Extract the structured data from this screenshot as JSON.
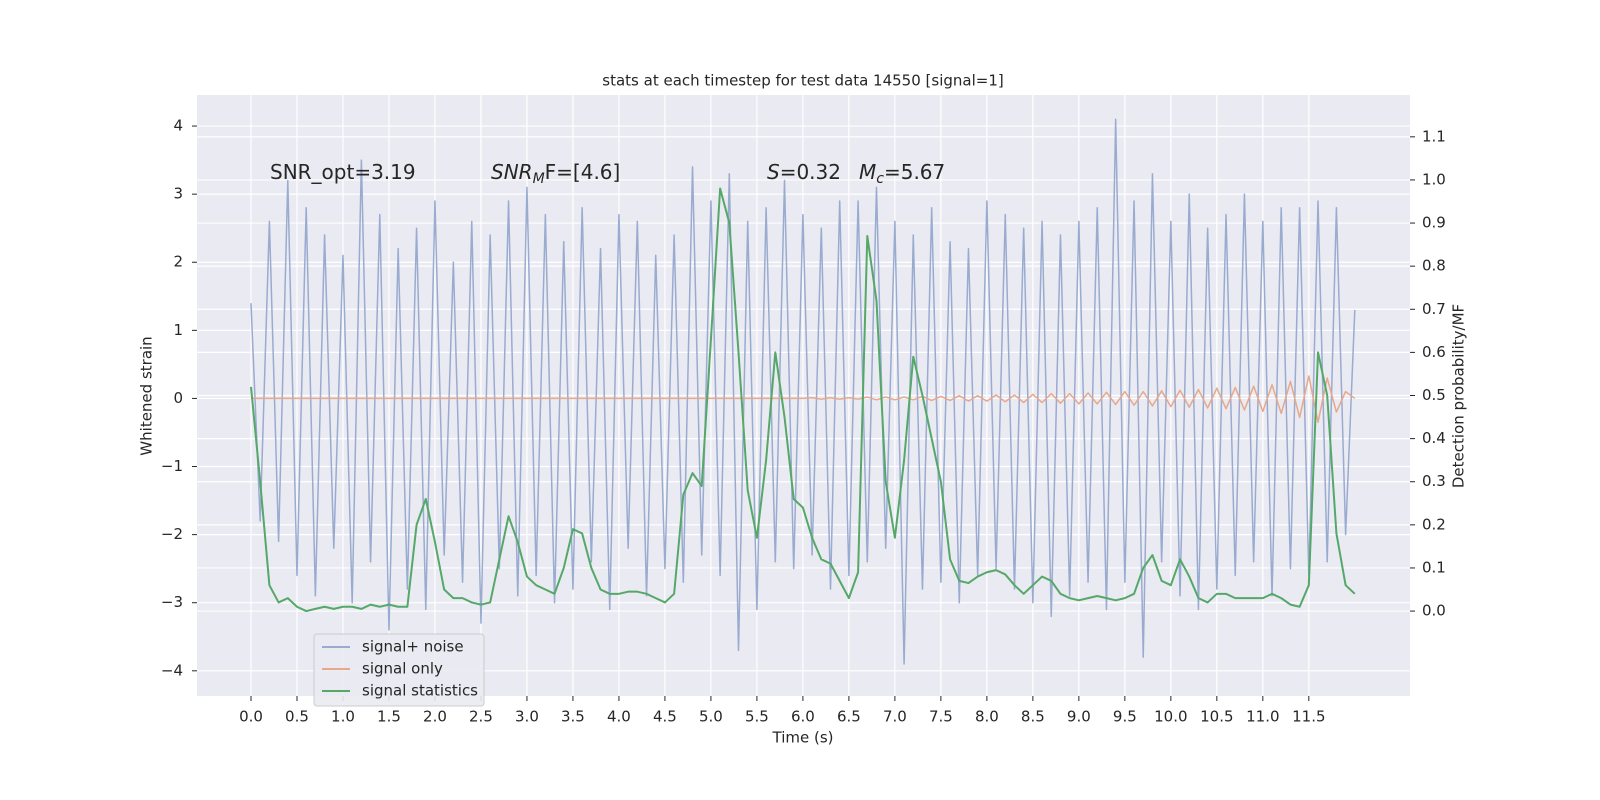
{
  "chart_data": {
    "type": "line",
    "title": "stats at each timestep for test data 14550 [signal=1]",
    "xlabel": "Time (s)",
    "ylabel": "Whitened strain",
    "y2label": "Detection probability/MF",
    "annotations": [
      [
        "SNR_opt=3.19"
      ],
      [
        "SNR",
        "M",
        "F=[4.6]"
      ],
      [
        "S",
        "=0.32"
      ],
      [
        "M",
        "c",
        "=5.67"
      ]
    ],
    "grid": true,
    "legend": "lower left",
    "x": [
      0,
      0.1,
      0.2,
      0.3,
      0.4,
      0.5,
      0.6,
      0.7,
      0.8,
      0.9,
      1,
      1.1,
      1.2,
      1.3,
      1.4,
      1.5,
      1.6,
      1.7,
      1.8,
      1.9,
      2,
      2.1,
      2.2,
      2.3,
      2.4,
      2.5,
      2.6,
      2.7,
      2.8,
      2.9,
      3,
      3.1,
      3.2,
      3.3,
      3.4,
      3.5,
      3.6,
      3.7,
      3.8,
      3.9,
      4,
      4.1,
      4.2,
      4.3,
      4.4,
      4.5,
      4.6,
      4.7,
      4.8,
      4.9,
      5,
      5.1,
      5.2,
      5.3,
      5.4,
      5.5,
      5.6,
      5.7,
      5.8,
      5.9,
      6,
      6.1,
      6.2,
      6.3,
      6.4,
      6.5,
      6.6,
      6.7,
      6.8,
      6.9,
      7,
      7.1,
      7.2,
      7.3,
      7.4,
      7.5,
      7.6,
      7.7,
      7.8,
      7.9,
      8,
      8.1,
      8.2,
      8.3,
      8.4,
      8.5,
      8.6,
      8.7,
      8.8,
      8.9,
      9,
      9.1,
      9.2,
      9.3,
      9.4,
      9.5,
      9.6,
      9.7,
      9.8,
      9.9,
      10,
      10.1,
      10.2,
      10.3,
      10.4,
      10.5,
      10.6,
      10.7,
      10.8,
      10.9,
      11,
      11.1,
      11.2,
      11.3,
      11.4,
      11.5,
      11.6,
      11.7,
      11.8,
      11.9,
      12
    ],
    "series": [
      {
        "name": "signal+ noise",
        "color": "#9aabd0",
        "values": [
          1.4,
          -1.8,
          2.6,
          -2.1,
          3.2,
          -2.6,
          2.8,
          -2.9,
          2.4,
          -2.2,
          2.1,
          -3.0,
          3.5,
          -2.4,
          2.7,
          -3.4,
          2.2,
          -2.8,
          2.5,
          -3.1,
          2.9,
          -2.3,
          2.0,
          -2.7,
          2.6,
          -3.3,
          2.4,
          -2.5,
          2.9,
          -2.9,
          3.1,
          -2.6,
          2.7,
          -3.0,
          2.3,
          -2.8,
          2.8,
          -2.4,
          2.2,
          -3.1,
          2.7,
          -2.2,
          2.6,
          -2.9,
          2.1,
          -2.5,
          2.4,
          -2.7,
          3.4,
          -2.3,
          2.9,
          -2.6,
          3.3,
          -3.7,
          2.6,
          -3.1,
          2.8,
          -2.4,
          3.2,
          -2.5,
          2.7,
          -2.3,
          2.5,
          -2.8,
          2.9,
          -2.6,
          2.9,
          -2.4,
          3.1,
          -2.2,
          2.6,
          -3.9,
          2.4,
          -2.8,
          2.8,
          -2.7,
          2.3,
          -3.0,
          2.2,
          -2.6,
          2.9,
          -2.5,
          2.7,
          -2.8,
          2.5,
          -3.0,
          2.6,
          -3.2,
          2.4,
          -2.9,
          2.6,
          -2.7,
          2.8,
          -3.1,
          4.1,
          -2.7,
          2.9,
          -3.8,
          3.3,
          -2.4,
          2.6,
          -2.9,
          3.0,
          -3.1,
          2.5,
          -2.8,
          2.7,
          -2.6,
          3.0,
          -2.4,
          2.6,
          -2.9,
          2.8,
          -2.5,
          2.8,
          -2.6,
          2.9,
          -2.4,
          2.8,
          -2.0,
          1.3
        ]
      },
      {
        "name": "signal only",
        "color": "#e8a88a",
        "values": [
          0,
          0,
          0,
          0,
          0,
          0,
          0,
          0,
          0,
          0,
          0,
          0,
          0,
          0,
          0,
          0,
          0,
          0,
          0,
          0,
          0,
          0,
          0,
          0,
          0,
          0,
          0,
          0,
          0,
          0,
          0,
          0,
          0,
          0,
          0,
          0,
          0,
          0,
          0,
          0,
          0,
          0,
          0,
          0,
          0,
          0,
          0,
          0,
          0,
          0,
          0,
          0,
          0,
          0,
          0,
          0,
          0,
          0,
          0,
          0,
          0,
          0.01,
          -0.01,
          0.01,
          -0.01,
          0.01,
          -0.01,
          0.02,
          -0.02,
          0.02,
          -0.02,
          0.02,
          -0.02,
          0.03,
          -0.03,
          0.03,
          -0.03,
          0.04,
          -0.04,
          0.04,
          -0.04,
          0.05,
          -0.05,
          0.05,
          -0.06,
          0.06,
          -0.06,
          0.07,
          -0.07,
          0.07,
          -0.08,
          0.08,
          -0.08,
          0.09,
          -0.09,
          0.1,
          -0.1,
          0.1,
          -0.11,
          0.11,
          -0.12,
          0.12,
          -0.13,
          0.13,
          -0.14,
          0.15,
          -0.15,
          0.16,
          -0.17,
          0.18,
          -0.19,
          0.2,
          -0.22,
          0.25,
          -0.28,
          0.33,
          -0.35,
          0.3,
          -0.2,
          0.1,
          0
        ]
      },
      {
        "name": "signal statistics",
        "color": "#55a868",
        "axis": "y2",
        "values": [
          0.52,
          0.3,
          0.06,
          0.02,
          0.03,
          0.01,
          0.0,
          0.005,
          0.01,
          0.005,
          0.01,
          0.01,
          0.005,
          0.015,
          0.01,
          0.015,
          0.01,
          0.01,
          0.2,
          0.26,
          0.16,
          0.05,
          0.03,
          0.03,
          0.02,
          0.015,
          0.02,
          0.12,
          0.22,
          0.16,
          0.08,
          0.06,
          0.05,
          0.04,
          0.1,
          0.19,
          0.18,
          0.1,
          0.05,
          0.04,
          0.04,
          0.045,
          0.045,
          0.04,
          0.03,
          0.02,
          0.04,
          0.27,
          0.32,
          0.29,
          0.63,
          0.98,
          0.9,
          0.6,
          0.28,
          0.17,
          0.35,
          0.6,
          0.45,
          0.26,
          0.24,
          0.17,
          0.12,
          0.11,
          0.07,
          0.03,
          0.09,
          0.87,
          0.72,
          0.3,
          0.17,
          0.35,
          0.59,
          0.5,
          0.4,
          0.3,
          0.12,
          0.07,
          0.065,
          0.08,
          0.09,
          0.095,
          0.085,
          0.06,
          0.04,
          0.06,
          0.08,
          0.07,
          0.04,
          0.03,
          0.025,
          0.03,
          0.035,
          0.03,
          0.025,
          0.03,
          0.04,
          0.1,
          0.13,
          0.07,
          0.06,
          0.12,
          0.08,
          0.03,
          0.02,
          0.04,
          0.04,
          0.03,
          0.03,
          0.03,
          0.03,
          0.04,
          0.03,
          0.015,
          0.01,
          0.06,
          0.6,
          0.5,
          0.18,
          0.06,
          0.04
        ]
      }
    ],
    "xlim": [
      -0.587,
      12.6
    ],
    "xticks": [
      {
        "value": 0,
        "label": "0.0"
      },
      {
        "value": 0.5,
        "label": "0.5"
      },
      {
        "value": 1,
        "label": "1.0"
      },
      {
        "value": 1.5,
        "label": "1.5"
      },
      {
        "value": 2,
        "label": "2.0"
      },
      {
        "value": 2.5,
        "label": "2.5"
      },
      {
        "value": 3,
        "label": "3.0"
      },
      {
        "value": 3.5,
        "label": "3.5"
      },
      {
        "value": 4,
        "label": "4.0"
      },
      {
        "value": 4.5,
        "label": "4.5"
      },
      {
        "value": 5,
        "label": "5.0"
      },
      {
        "value": 5.5,
        "label": "5.5"
      },
      {
        "value": 6,
        "label": "6.0"
      },
      {
        "value": 6.5,
        "label": "6.5"
      },
      {
        "value": 7,
        "label": "7.0"
      },
      {
        "value": 7.5,
        "label": "7.5"
      },
      {
        "value": 8,
        "label": "8.0"
      },
      {
        "value": 8.5,
        "label": "8.5"
      },
      {
        "value": 9,
        "label": "9.0"
      },
      {
        "value": 9.5,
        "label": "9.5"
      },
      {
        "value": 10,
        "label": "10.0"
      },
      {
        "value": 10.5,
        "label": "10.5"
      },
      {
        "value": 11,
        "label": "11.0"
      },
      {
        "value": 11.5,
        "label": "11.5"
      }
    ],
    "ylim": [
      -4.37,
      4.456
    ],
    "yticks": [
      {
        "value": -4,
        "label": "−4"
      },
      {
        "value": -3,
        "label": "−3"
      },
      {
        "value": -2,
        "label": "−2"
      },
      {
        "value": -1,
        "label": "−1"
      },
      0,
      1,
      2,
      3,
      4
    ],
    "y2lim": [
      -0.197,
      1.197
    ],
    "y2ticks": [
      {
        "value": 0,
        "label": "0.0"
      },
      {
        "value": 0.1,
        "label": "0.1"
      },
      {
        "value": 0.2,
        "label": "0.2"
      },
      {
        "value": 0.3,
        "label": "0.3"
      },
      {
        "value": 0.4,
        "label": "0.4"
      },
      {
        "value": 0.5,
        "label": "0.5"
      },
      {
        "value": 0.6,
        "label": "0.6"
      },
      {
        "value": 0.7,
        "label": "0.7"
      },
      {
        "value": 0.8,
        "label": "0.8"
      },
      {
        "value": 0.9,
        "label": "0.9"
      },
      {
        "value": 1,
        "label": "1.0"
      },
      {
        "value": 1.1,
        "label": "1.1"
      }
    ]
  }
}
